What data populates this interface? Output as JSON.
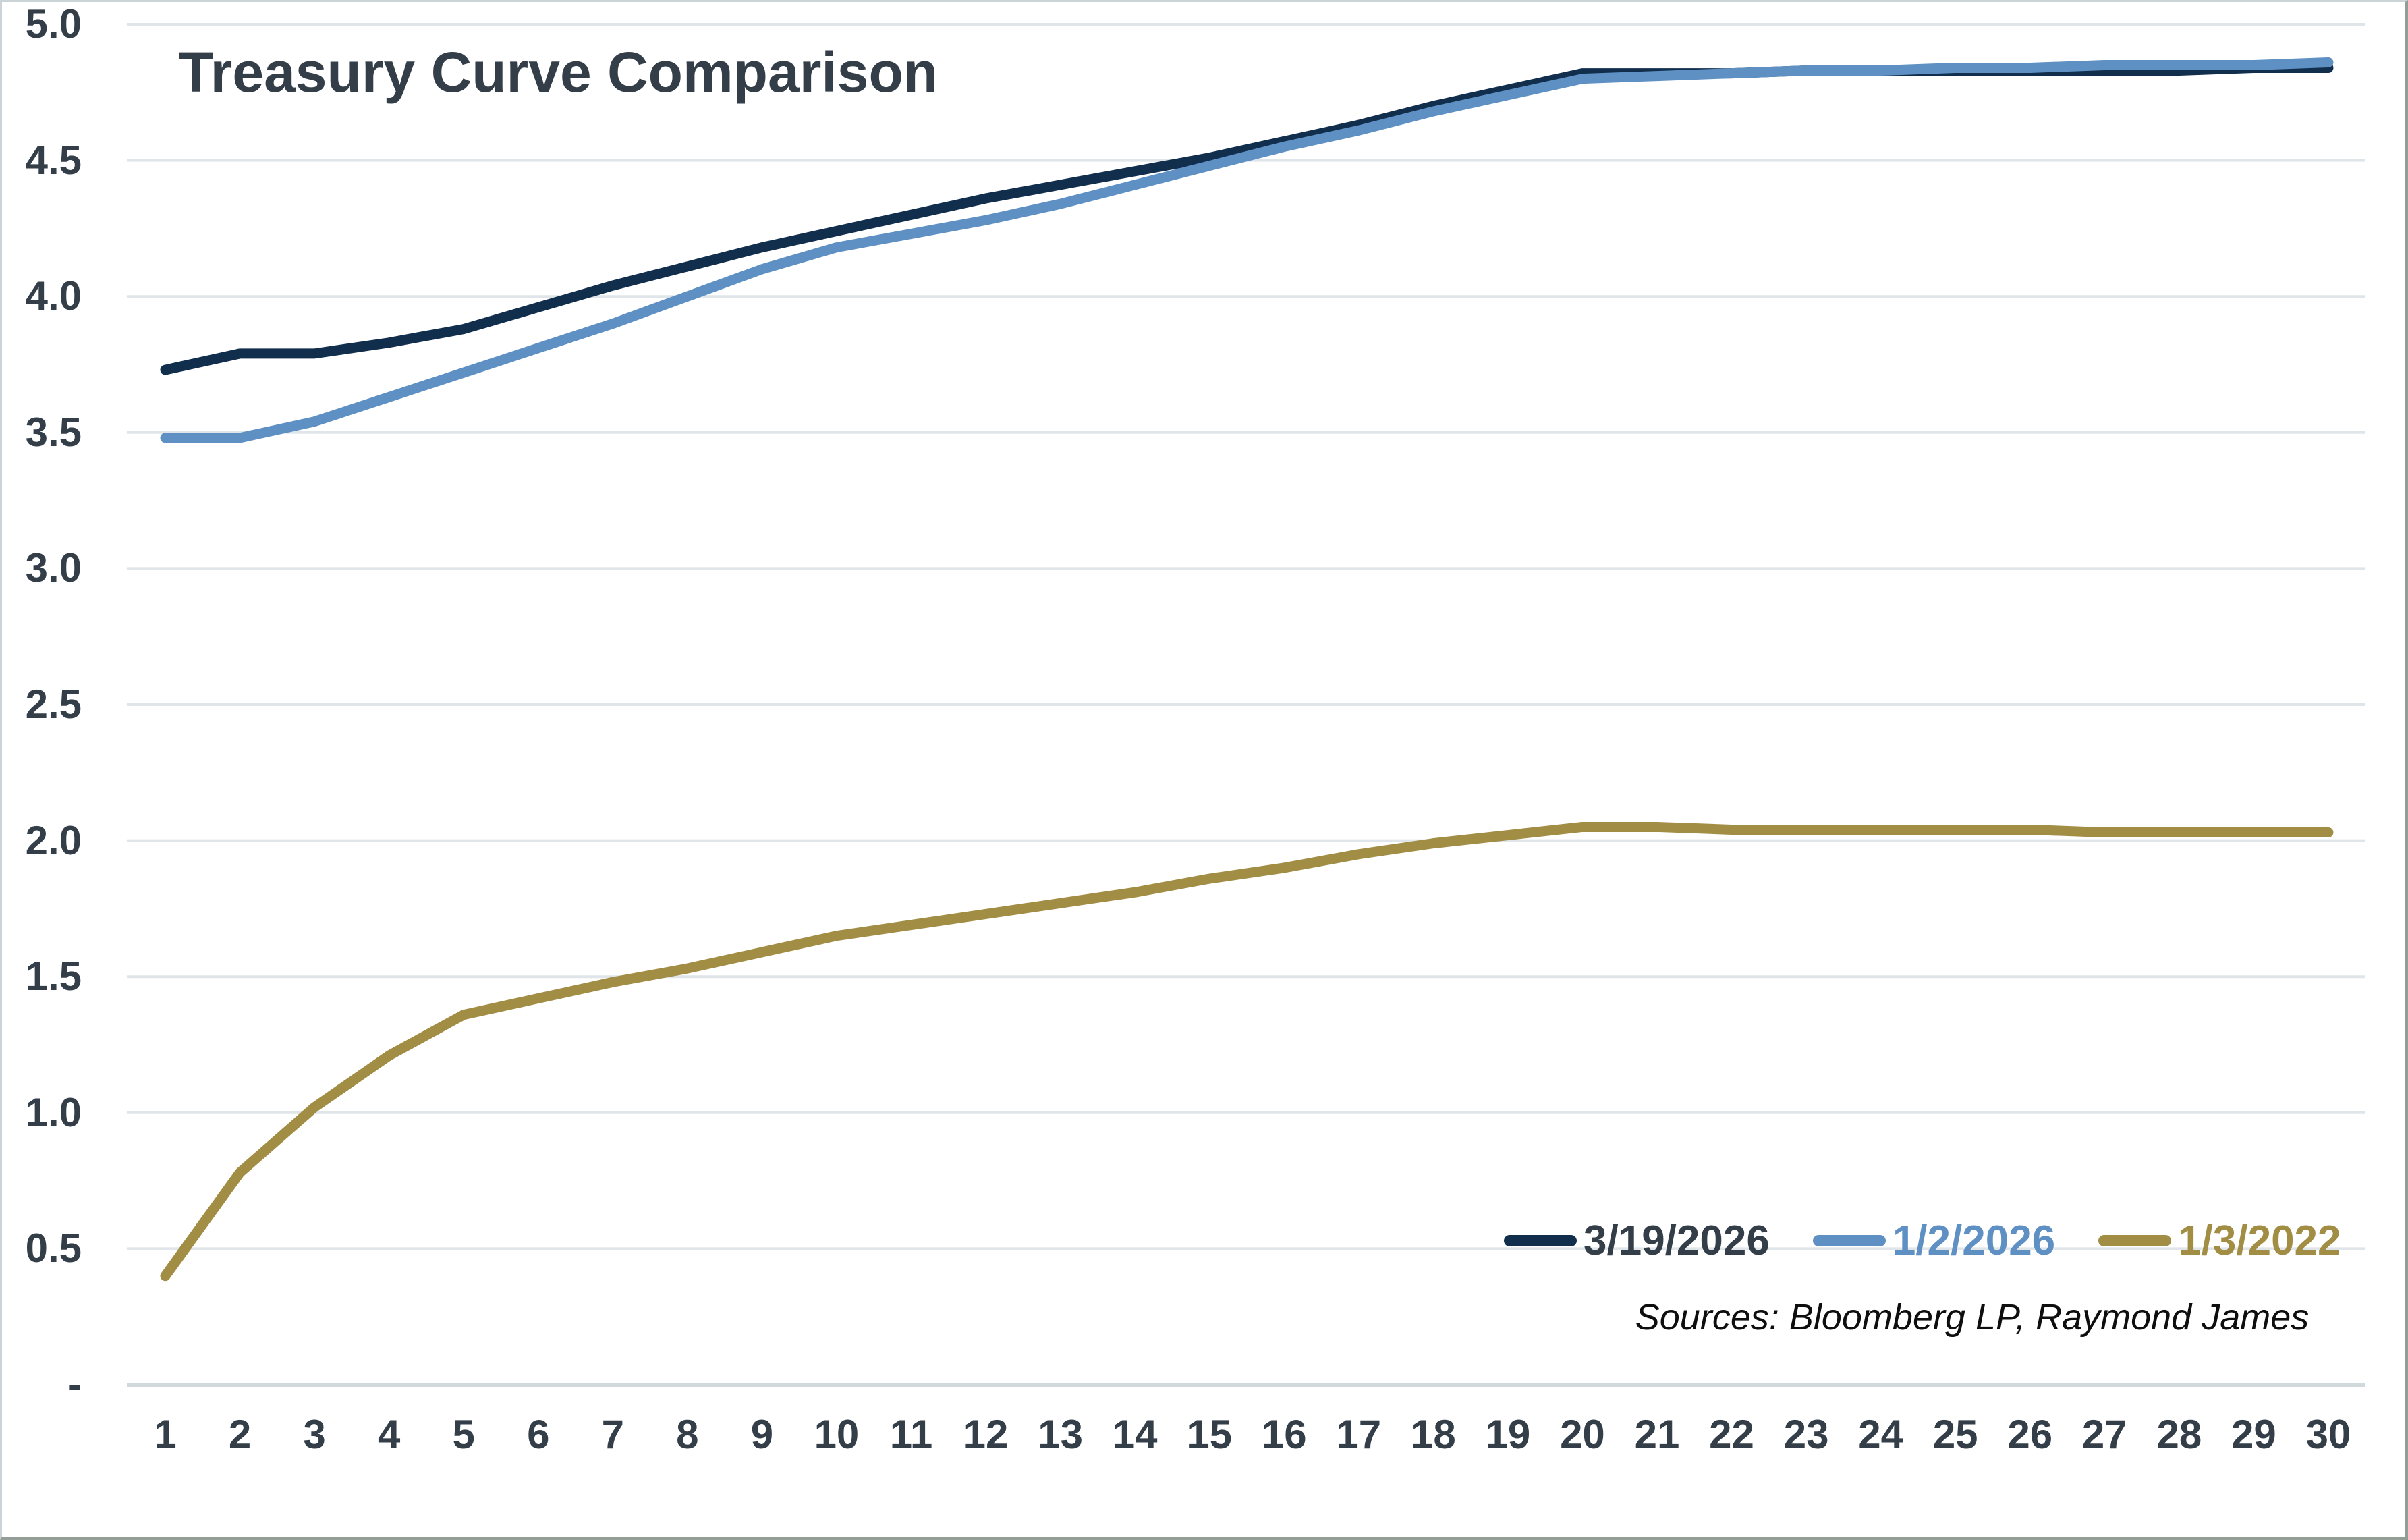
{
  "chart": {
    "title": "Treasury Curve Comparison",
    "source_note": "Sources: Bloomberg LP, Raymond James"
  },
  "chart_data": {
    "type": "line",
    "title": "Treasury Curve Comparison",
    "xlabel": "",
    "ylabel": "",
    "x": [
      1,
      2,
      3,
      4,
      5,
      6,
      7,
      8,
      9,
      10,
      11,
      12,
      13,
      14,
      15,
      16,
      17,
      18,
      19,
      20,
      21,
      22,
      23,
      24,
      25,
      26,
      27,
      28,
      29,
      30
    ],
    "xlim": [
      1,
      30
    ],
    "ylim": [
      0,
      5
    ],
    "ytick_step": 0.5,
    "ytick_labels": [
      "-",
      "0.5",
      "1.0",
      "1.5",
      "2.0",
      "2.5",
      "3.0",
      "3.5",
      "4.0",
      "4.5",
      "5.0"
    ],
    "grid": "horizontal",
    "legend_position": "inside-bottom-right",
    "colors": {
      "grid": "#dfe5e9",
      "zero_axis": "#d2d9dd",
      "text": "#343e48"
    },
    "series": [
      {
        "name": "3/19/2026",
        "color": "#112e4d",
        "values": [
          3.73,
          3.79,
          3.79,
          3.83,
          3.88,
          3.96,
          4.04,
          4.11,
          4.18,
          4.24,
          4.3,
          4.36,
          4.41,
          4.46,
          4.51,
          4.57,
          4.63,
          4.7,
          4.76,
          4.82,
          4.82,
          4.82,
          4.83,
          4.83,
          4.83,
          4.83,
          4.83,
          4.83,
          4.84,
          4.84
        ]
      },
      {
        "name": "1/2/2026",
        "color": "#5e90c3",
        "values": [
          3.48,
          3.48,
          3.54,
          3.63,
          3.72,
          3.81,
          3.9,
          4.0,
          4.1,
          4.18,
          4.23,
          4.28,
          4.34,
          4.41,
          4.48,
          4.55,
          4.61,
          4.68,
          4.74,
          4.8,
          4.81,
          4.82,
          4.83,
          4.83,
          4.84,
          4.84,
          4.85,
          4.85,
          4.85,
          4.86
        ]
      },
      {
        "name": "1/3/2022",
        "color": "#a18d43",
        "values": [
          0.4,
          0.78,
          1.02,
          1.21,
          1.36,
          1.42,
          1.48,
          1.53,
          1.59,
          1.65,
          1.69,
          1.73,
          1.77,
          1.81,
          1.86,
          1.9,
          1.95,
          1.99,
          2.02,
          2.05,
          2.05,
          2.04,
          2.04,
          2.04,
          2.04,
          2.04,
          2.03,
          2.03,
          2.03,
          2.03
        ]
      }
    ]
  }
}
